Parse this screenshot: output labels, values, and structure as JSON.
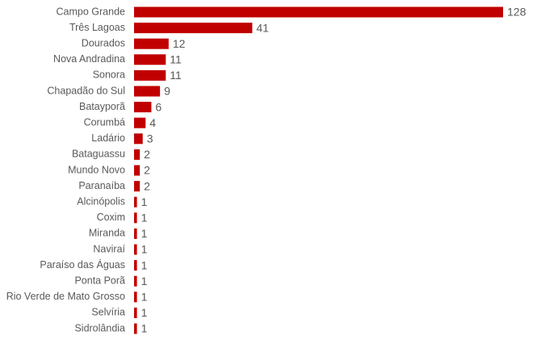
{
  "chart_data": {
    "type": "hbar",
    "categories": [
      "Campo Grande",
      "Três Lagoas",
      "Dourados",
      "Nova Andradina",
      "Sonora",
      "Chapadão do Sul",
      "Batayporã",
      "Corumbá",
      "Ladário",
      "Bataguassu",
      "Mundo Novo",
      "Paranaíba",
      "Alcinópolis",
      "Coxim",
      "Miranda",
      "Naviraí",
      "Paraíso das Águas",
      "Ponta Porã",
      "Rio Verde de Mato Grosso",
      "Selvíria",
      "Sidrolândia"
    ],
    "values": [
      128,
      41,
      12,
      11,
      11,
      9,
      6,
      4,
      3,
      2,
      2,
      2,
      1,
      1,
      1,
      1,
      1,
      1,
      1,
      1,
      1
    ],
    "color": "#c00000"
  }
}
